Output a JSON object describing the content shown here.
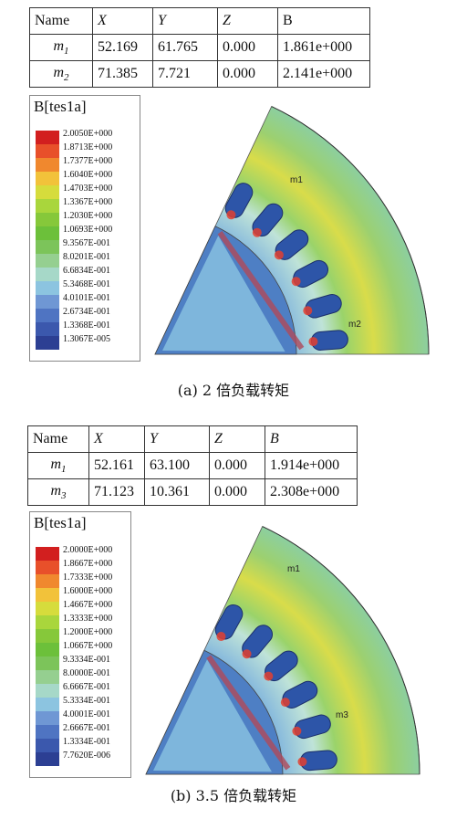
{
  "panel_a": {
    "headers": [
      "Name",
      "X",
      "Y",
      "Z",
      "B"
    ],
    "rows": [
      {
        "name": "m",
        "sub": "1",
        "x": "52.169",
        "y": "61.765",
        "z": "0.000",
        "b": "1.861e+000"
      },
      {
        "name": "m",
        "sub": "2",
        "x": "71.385",
        "y": "7.721",
        "z": "0.000",
        "b": "2.141e+000"
      }
    ],
    "legend_title": "B[tes1a]",
    "legend_values": [
      "2.0050E+000",
      "1.8713E+000",
      "1.7377E+000",
      "1.6040E+000",
      "1.4703E+000",
      "1.3367E+000",
      "1.2030E+000",
      "1.0693E+000",
      "9.3567E-001",
      "8.0201E-001",
      "6.6834E-001",
      "5.3468E-001",
      "4.0101E-001",
      "2.6734E-001",
      "1.3368E-001",
      "1.3067E-005"
    ],
    "markers": [
      "m1",
      "m2"
    ],
    "caption": "(a) 2 倍负载转矩"
  },
  "panel_b": {
    "headers": [
      "Name",
      "X",
      "Y",
      "Z",
      "B"
    ],
    "rows": [
      {
        "name": "m",
        "sub": "1",
        "x": "52.161",
        "y": "63.100",
        "z": "0.000",
        "b": "1.914e+000"
      },
      {
        "name": "m",
        "sub": "3",
        "x": "71.123",
        "y": "10.361",
        "z": "0.000",
        "b": "2.308e+000"
      }
    ],
    "legend_title": "B[tes1a]",
    "legend_values": [
      "2.0000E+000",
      "1.8667E+000",
      "1.7333E+000",
      "1.6000E+000",
      "1.4667E+000",
      "1.3333E+000",
      "1.2000E+000",
      "1.0667E+000",
      "9.3334E-001",
      "8.0000E-001",
      "6.6667E-001",
      "5.3334E-001",
      "4.0001E-001",
      "2.6667E-001",
      "1.3334E-001",
      "7.7620E-006"
    ],
    "markers": [
      "m1",
      "m3"
    ],
    "caption": "(b) 3.5 倍负载转矩"
  },
  "legend_colors": [
    "#d21f1f",
    "#e8502a",
    "#f0882e",
    "#f2c23a",
    "#d6dc3c",
    "#a9d63c",
    "#86c83a",
    "#6cc03a",
    "#7cc45a",
    "#95cf90",
    "#a6d8c8",
    "#8cc4e0",
    "#6f97d4",
    "#4f74c2",
    "#3b58ad",
    "#2c3f93"
  ]
}
